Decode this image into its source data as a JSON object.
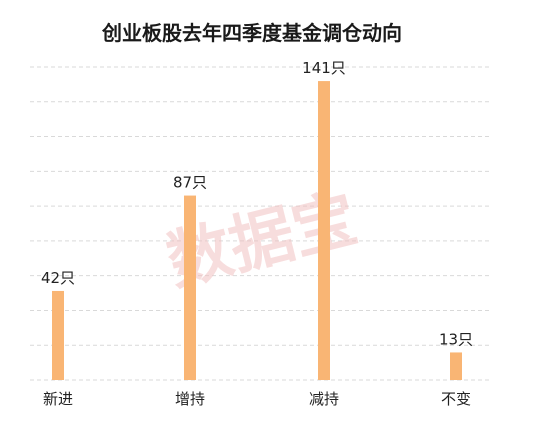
{
  "watermark": "数据宝",
  "chart_data": {
    "type": "bar",
    "title": "创业板股去年四季度基金调仓动向",
    "categories": [
      "新进",
      "增持",
      "减持",
      "不变"
    ],
    "values": [
      42,
      87,
      141,
      13
    ],
    "data_labels": [
      "42只",
      "87只",
      "141只",
      "13只"
    ],
    "unit": "只",
    "ylim": [
      0,
      150
    ],
    "grid": true,
    "legend": "none",
    "bar_color": "#F9B574",
    "grid_color": "#d9d9d9"
  }
}
